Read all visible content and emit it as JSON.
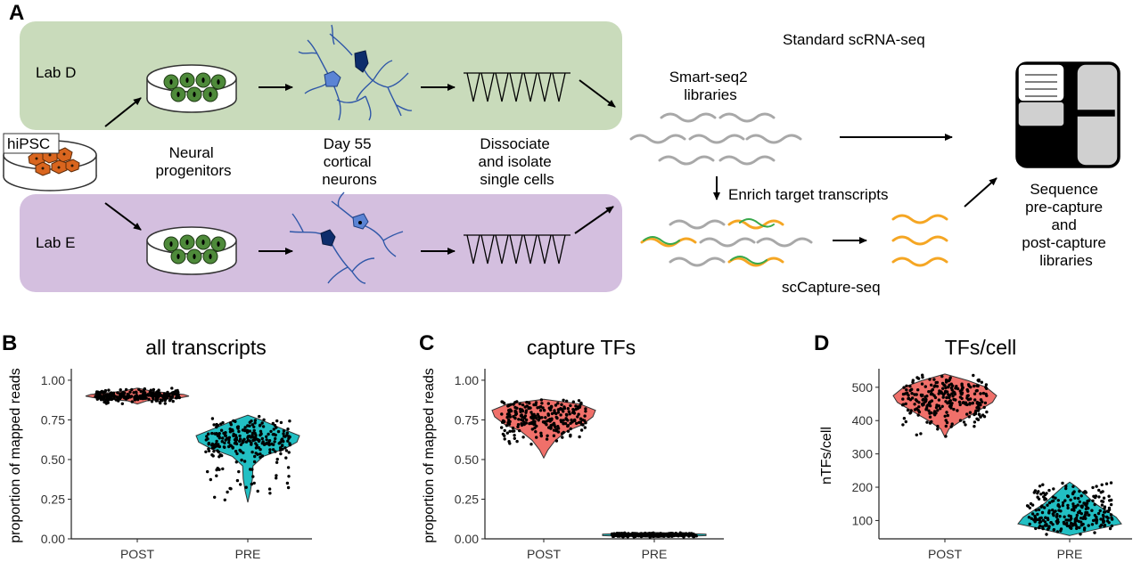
{
  "panel_a": {
    "letter": "A",
    "lab_d": "Lab D",
    "lab_e": "Lab E",
    "hipsc": "hiPSC",
    "neural_progenitors": [
      "Neural",
      "progenitors"
    ],
    "cortical_neurons": [
      "Day 55",
      "cortical",
      "neurons"
    ],
    "dissociate": [
      "Dissociate",
      "and isolate",
      "single cells"
    ],
    "standard_scrnaseq": "Standard scRNA-seq",
    "smartseq2": [
      "Smart-seq2",
      "libraries"
    ],
    "enrich": "Enrich target transcripts",
    "sccapture": "scCapture-seq",
    "sequence": [
      "Sequence",
      "pre-capture",
      "and",
      "post-capture",
      "libraries"
    ],
    "colors": {
      "lab_d_bg": "#c9dbbb",
      "lab_e_bg": "#d4bfdf",
      "cell_orange": "#d9651e",
      "progenitor_green": "#4e8a3a",
      "neuron_blue": "#2f57a8",
      "neuron_navy": "#0d2d6b",
      "transcript_grey": "#a8a8a8",
      "capture_orange": "#f5a623",
      "capture_green": "#38a84a"
    }
  },
  "chart_data": [
    {
      "panel": "B",
      "type": "violin",
      "title": "all transcripts",
      "ylabel": "proportion of mapped reads",
      "xlabel": "",
      "categories": [
        "POST",
        "PRE"
      ],
      "ylim": [
        0,
        1.05
      ],
      "yticks": [
        "0.00",
        "0.25",
        "0.50",
        "0.75",
        "1.00"
      ],
      "ytick_values": [
        0,
        0.25,
        0.5,
        0.75,
        1.0
      ],
      "series": [
        {
          "category": "POST",
          "color": "#f0706a",
          "min": 0.85,
          "max": 0.95,
          "profile": [
            [
              0.85,
              0.0
            ],
            [
              0.87,
              0.18
            ],
            [
              0.89,
              0.85
            ],
            [
              0.9,
              1.0
            ],
            [
              0.91,
              0.9
            ],
            [
              0.93,
              0.3
            ],
            [
              0.95,
              0.0
            ]
          ]
        },
        {
          "category": "PRE",
          "color": "#22bfc3",
          "min": 0.23,
          "max": 0.78,
          "profile": [
            [
              0.23,
              0.0
            ],
            [
              0.3,
              0.05
            ],
            [
              0.38,
              0.09
            ],
            [
              0.46,
              0.1
            ],
            [
              0.52,
              0.3
            ],
            [
              0.57,
              0.72
            ],
            [
              0.61,
              0.95
            ],
            [
              0.65,
              1.0
            ],
            [
              0.7,
              0.62
            ],
            [
              0.75,
              0.25
            ],
            [
              0.78,
              0.0
            ]
          ]
        }
      ]
    },
    {
      "panel": "C",
      "type": "violin",
      "title": "capture TFs",
      "ylabel": "proportion of mapped reads",
      "xlabel": "",
      "categories": [
        "POST",
        "PRE"
      ],
      "ylim": [
        0,
        1.05
      ],
      "yticks": [
        "0.00",
        "0.25",
        "0.50",
        "0.75",
        "1.00"
      ],
      "ytick_values": [
        0,
        0.25,
        0.5,
        0.75,
        1.0
      ],
      "series": [
        {
          "category": "POST",
          "color": "#f0706a",
          "min": 0.51,
          "max": 0.88,
          "profile": [
            [
              0.51,
              0.0
            ],
            [
              0.56,
              0.08
            ],
            [
              0.62,
              0.22
            ],
            [
              0.68,
              0.45
            ],
            [
              0.72,
              0.75
            ],
            [
              0.77,
              0.95
            ],
            [
              0.81,
              1.0
            ],
            [
              0.85,
              0.7
            ],
            [
              0.88,
              0.0
            ]
          ]
        },
        {
          "category": "PRE",
          "color": "#22bfc3",
          "min": 0.01,
          "max": 0.04,
          "profile": [
            [
              0.01,
              0.0
            ],
            [
              0.02,
              1.0
            ],
            [
              0.03,
              1.0
            ],
            [
              0.04,
              0.0
            ]
          ]
        }
      ]
    },
    {
      "panel": "D",
      "type": "violin",
      "title": "TFs/cell",
      "ylabel": "nTFs/cell",
      "xlabel": "",
      "categories": [
        "POST",
        "PRE"
      ],
      "ylim": [
        45,
        545
      ],
      "yticks": [
        "100",
        "200",
        "300",
        "400",
        "500"
      ],
      "ytick_values": [
        100,
        200,
        300,
        400,
        500
      ],
      "series": [
        {
          "category": "POST",
          "color": "#f0706a",
          "min": 350,
          "max": 540,
          "profile": [
            [
              350,
              0.0
            ],
            [
              375,
              0.08
            ],
            [
              400,
              0.32
            ],
            [
              430,
              0.65
            ],
            [
              455,
              0.92
            ],
            [
              475,
              1.0
            ],
            [
              500,
              0.8
            ],
            [
              520,
              0.45
            ],
            [
              540,
              0.0
            ]
          ]
        },
        {
          "category": "PRE",
          "color": "#22bfc3",
          "min": 55,
          "max": 215,
          "profile": [
            [
              55,
              0.0
            ],
            [
              75,
              0.55
            ],
            [
              90,
              1.0
            ],
            [
              110,
              0.9
            ],
            [
              130,
              0.7
            ],
            [
              150,
              0.5
            ],
            [
              175,
              0.32
            ],
            [
              200,
              0.14
            ],
            [
              215,
              0.0
            ]
          ]
        }
      ]
    }
  ]
}
